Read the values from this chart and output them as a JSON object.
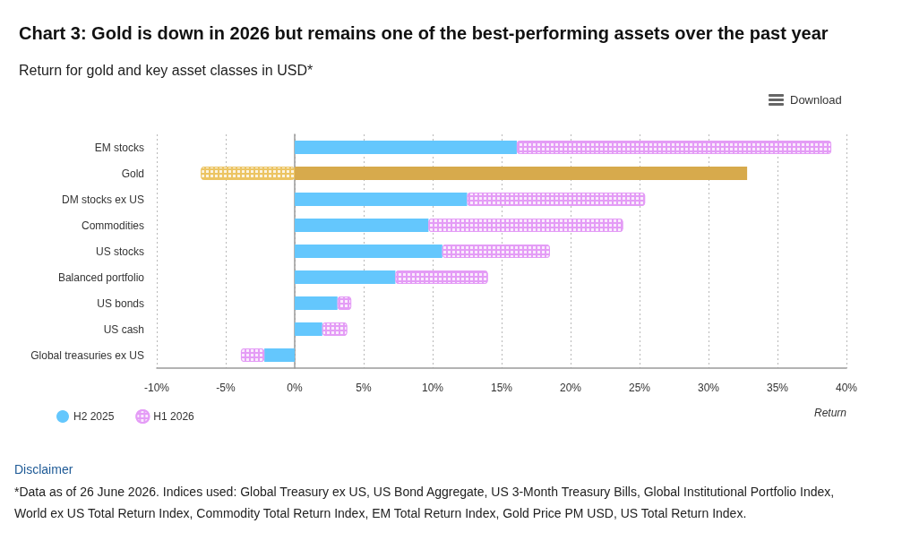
{
  "chart_data": {
    "type": "bar",
    "title": "Chart 3: Gold is down in 2026 but remains one of the best-performing assets over the past year",
    "subtitle": "Return for gold and key asset classes in USD*",
    "xlabel": "Return",
    "categories": [
      "EM stocks",
      "Gold",
      "DM stocks ex US",
      "Commodities",
      "US stocks",
      "Balanced portfolio",
      "US bonds",
      "US cash",
      "Global treasuries ex US"
    ],
    "orientation": "horizontal",
    "stacked": true,
    "series": [
      {
        "name": "H2 2025",
        "color": "#64c7fd",
        "colors": [
          "#64c7fd",
          "#d7aa4c",
          "#64c7fd",
          "#64c7fd",
          "#64c7fd",
          "#64c7fd",
          "#64c7fd",
          "#64c7fd",
          "#64c7fd"
        ],
        "values": [
          16.1,
          32.8,
          12.5,
          9.7,
          10.7,
          7.3,
          3.1,
          2.0,
          -2.2
        ]
      },
      {
        "name": "H1 2026",
        "color": "#e49cf6",
        "colors": [
          "#e49cf6",
          "#ecc462",
          "#e49cf6",
          "#e49cf6",
          "#e49cf6",
          "#e49cf6",
          "#e49cf6",
          "#e49cf6",
          "#e49cf6"
        ],
        "values": [
          22.8,
          -6.8,
          12.9,
          14.1,
          7.8,
          6.7,
          1.0,
          1.8,
          -1.7
        ]
      }
    ],
    "xlim": [
      -10,
      40
    ],
    "xticks": [
      {
        "value": -10,
        "label": "-10%"
      },
      {
        "value": -5,
        "label": "-5%"
      },
      {
        "value": 0,
        "label": "0%"
      },
      {
        "value": 5,
        "label": "5%"
      },
      {
        "value": 10,
        "label": "10%"
      },
      {
        "value": 15,
        "label": "15%"
      },
      {
        "value": 20,
        "label": "20%"
      },
      {
        "value": 25,
        "label": "25%"
      },
      {
        "value": 30,
        "label": "30%"
      },
      {
        "value": 35,
        "label": "35%"
      },
      {
        "value": 40,
        "label": "40%"
      }
    ],
    "grid": "x",
    "legend": "bottom left",
    "annotations": [
      "Download",
      "Disclaimer",
      "*Data as of 26 June 2026. Indices used: Global Treasury ex US, US Bond Aggregate, US 3-Month Treasury Bills, Global Institutional Portfolio Index, World ex US Total Return Index, Commodity Total Return Index, EM Total Return Index, Gold Price PM USD, US Total Return Index."
    ]
  }
}
